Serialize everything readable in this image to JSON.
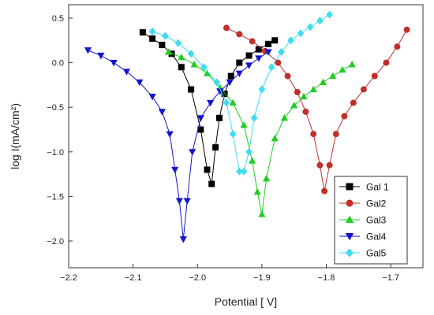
{
  "chart_data": {
    "type": "scatter",
    "title": "",
    "xlabel": "Potential [ V]",
    "ylabel": "log I(mA/cm²)",
    "xlim": [
      -2.2,
      -1.65
    ],
    "ylim": [
      -2.3,
      0.65
    ],
    "xticks": [
      -2.2,
      -2.1,
      -2.0,
      -1.9,
      -1.8,
      -1.7
    ],
    "yticks": [
      0.5,
      0.0,
      -0.5,
      -1.0,
      -1.5,
      -2.0
    ],
    "xtick_labels": [
      "−2.2",
      "−2.1",
      "−2.0",
      "−1.9",
      "−1.8",
      "−1.7"
    ],
    "ytick_labels": [
      "0.5",
      "0.0",
      "−0.5",
      "−1.0",
      "−1.5",
      "−2.0"
    ],
    "grid": false,
    "legend_position": "bottom-right",
    "series": [
      {
        "name": "Gal 1",
        "color": "#000000",
        "marker": "square",
        "x": [
          -2.085,
          -2.07,
          -2.055,
          -2.04,
          -2.025,
          -2.01,
          -1.995,
          -1.985,
          -1.978,
          -1.972,
          -1.966,
          -1.958,
          -1.948,
          -1.935,
          -1.92,
          -1.905,
          -1.89,
          -1.88
        ],
        "y": [
          0.34,
          0.27,
          0.2,
          0.1,
          -0.05,
          -0.3,
          -0.75,
          -1.2,
          -1.36,
          -0.95,
          -0.62,
          -0.35,
          -0.15,
          0.0,
          0.08,
          0.15,
          0.21,
          0.25
        ]
      },
      {
        "name": "Gal2",
        "color": "#c0302a",
        "marker": "circle",
        "x": [
          -1.955,
          -1.935,
          -1.915,
          -1.895,
          -1.875,
          -1.86,
          -1.845,
          -1.832,
          -1.82,
          -1.81,
          -1.803,
          -1.795,
          -1.785,
          -1.772,
          -1.758,
          -1.742,
          -1.725,
          -1.707,
          -1.69,
          -1.675
        ],
        "y": [
          0.39,
          0.32,
          0.24,
          0.13,
          0.0,
          -0.15,
          -0.33,
          -0.55,
          -0.8,
          -1.15,
          -1.44,
          -1.15,
          -0.8,
          -0.6,
          -0.45,
          -0.3,
          -0.15,
          0.0,
          0.18,
          0.37
        ]
      },
      {
        "name": "Gal3",
        "color": "#22cc22",
        "marker": "triangle-up",
        "x": [
          -2.045,
          -2.025,
          -2.005,
          -1.985,
          -1.965,
          -1.945,
          -1.928,
          -1.915,
          -1.907,
          -1.9,
          -1.893,
          -1.88,
          -1.865,
          -1.85,
          -1.835,
          -1.82,
          -1.805,
          -1.79,
          -1.775,
          -1.76
        ],
        "y": [
          0.12,
          0.06,
          -0.02,
          -0.12,
          -0.28,
          -0.45,
          -0.7,
          -1.1,
          -1.45,
          -1.7,
          -1.3,
          -0.85,
          -0.62,
          -0.48,
          -0.38,
          -0.3,
          -0.22,
          -0.15,
          -0.08,
          -0.02
        ]
      },
      {
        "name": "Gal4",
        "color": "#1515cc",
        "marker": "triangle-down",
        "x": [
          -2.17,
          -2.15,
          -2.13,
          -2.11,
          -2.09,
          -2.07,
          -2.055,
          -2.043,
          -2.035,
          -2.028,
          -2.022,
          -2.016,
          -2.008,
          -1.995,
          -1.98,
          -1.965,
          -1.95,
          -1.935,
          -1.92,
          -1.905,
          -1.89
        ],
        "y": [
          0.14,
          0.08,
          0.0,
          -0.1,
          -0.22,
          -0.38,
          -0.55,
          -0.8,
          -1.2,
          -1.55,
          -1.98,
          -1.55,
          -1.0,
          -0.62,
          -0.45,
          -0.32,
          -0.22,
          -0.12,
          -0.03,
          0.05,
          0.12
        ]
      },
      {
        "name": "Gal5",
        "color": "#3fdcf0",
        "marker": "diamond",
        "x": [
          -2.07,
          -2.05,
          -2.03,
          -2.01,
          -1.99,
          -1.97,
          -1.955,
          -1.945,
          -1.935,
          -1.928,
          -1.92,
          -1.912,
          -1.9,
          -1.885,
          -1.87,
          -1.855,
          -1.84,
          -1.825,
          -1.81,
          -1.795
        ],
        "y": [
          0.35,
          0.3,
          0.22,
          0.1,
          -0.05,
          -0.22,
          -0.45,
          -0.8,
          -1.22,
          -1.22,
          -1.0,
          -0.62,
          -0.3,
          -0.05,
          0.12,
          0.25,
          0.33,
          0.4,
          0.47,
          0.54
        ]
      }
    ]
  }
}
